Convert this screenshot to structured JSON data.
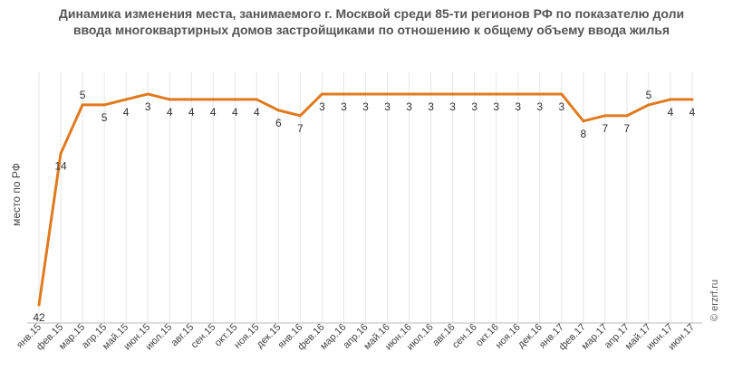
{
  "chart_data": {
    "type": "line",
    "title": "Динамика изменения места, занимаемого г. Москвой среди 85-ти регионов РФ по показателю доли ввода многоквартирных домов застройщиками по отношению к общему объему ввода жилья",
    "ylabel": "место по РФ",
    "xlabel": "",
    "watermark": "© erzrf.ru",
    "y_inverted": true,
    "ylim": [
      1,
      42
    ],
    "grid": "vertical",
    "legend": "none",
    "series": [
      {
        "color": "#e07a1f",
        "values": [
          42,
          14,
          5,
          5,
          4,
          3,
          4,
          4,
          4,
          4,
          4,
          6,
          7,
          3,
          3,
          3,
          3,
          3,
          3,
          3,
          3,
          3,
          3,
          3,
          3,
          8,
          7,
          7,
          5,
          4,
          4
        ]
      }
    ],
    "categories": [
      "янв.15",
      "фев.15",
      "мар.15",
      "апр.15",
      "май.15",
      "июн.15",
      "июл.15",
      "авг.15",
      "сен.15",
      "окт.15",
      "ноя.15",
      "дек.15",
      "янв.16",
      "фев.16",
      "мар.16",
      "апр.16",
      "май.16",
      "июн.16",
      "июл.16",
      "авг.16",
      "сен.16",
      "окт.16",
      "ноя.16",
      "дек.16",
      "янв.17",
      "фев.17",
      "мар.17",
      "апр.17",
      "май.17",
      "июн.17",
      "июн.17"
    ],
    "label_positions": [
      "below",
      "below",
      "above",
      "below",
      "below",
      "below",
      "below",
      "below",
      "below",
      "below",
      "below",
      "below",
      "below",
      "below",
      "below",
      "below",
      "below",
      "below",
      "below",
      "below",
      "below",
      "below",
      "below",
      "below",
      "below",
      "below",
      "below",
      "below",
      "above",
      "below",
      "below"
    ]
  }
}
